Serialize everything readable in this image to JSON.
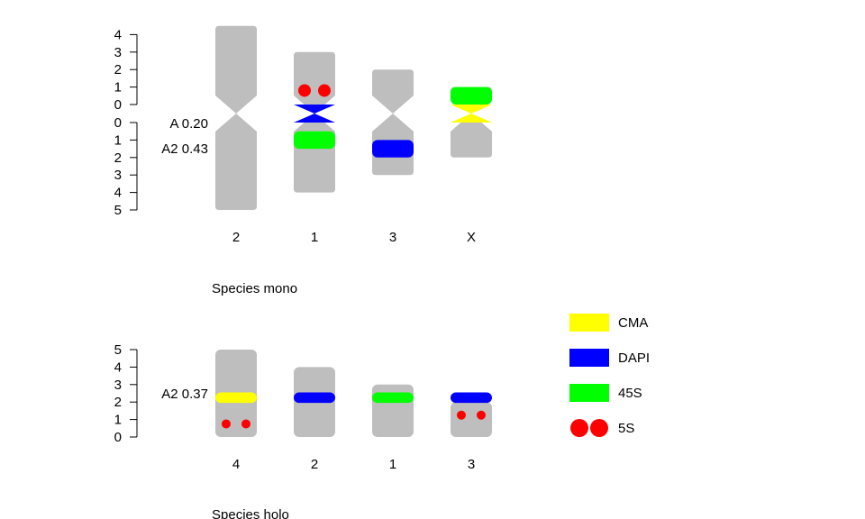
{
  "colors": {
    "chromosome": "#bebebe",
    "CMA": "#ffff00",
    "DAPI": "#0000ff",
    "45S": "#00ff00",
    "5S": "#ff0000"
  },
  "legend": [
    {
      "key": "CMA",
      "label": "CMA",
      "shape": "rect"
    },
    {
      "key": "DAPI",
      "label": "DAPI",
      "shape": "rect"
    },
    {
      "key": "45S",
      "label": "45S",
      "shape": "rect"
    },
    {
      "key": "5S",
      "label": "5S",
      "shape": "dots"
    }
  ],
  "panels": [
    {
      "title": "Species mono",
      "type": "monocentric",
      "short_arm_ticks": [
        "0",
        "1",
        "2",
        "3",
        "4"
      ],
      "long_arm_ticks": [
        "0",
        "1",
        "2",
        "3",
        "4",
        "5"
      ],
      "indices": [
        {
          "label": "A  0.20"
        },
        {
          "label": "A2 0.43"
        }
      ],
      "chromosomes": [
        {
          "name": "2",
          "short": 4.5,
          "long": 5.0,
          "marks": []
        },
        {
          "name": "1",
          "short": 3.0,
          "long": 4.0,
          "marks": [
            {
              "kind": "5S",
              "arm": "short",
              "pos": 0.8
            },
            {
              "kind": "DAPI",
              "arm": "cen"
            },
            {
              "kind": "45S",
              "arm": "long",
              "from": 0.5,
              "to": 1.5
            }
          ]
        },
        {
          "name": "3",
          "short": 2.0,
          "long": 3.0,
          "marks": [
            {
              "kind": "DAPI",
              "arm": "long",
              "from": 1.0,
              "to": 2.0
            }
          ]
        },
        {
          "name": "X",
          "short": 1.0,
          "long": 2.0,
          "marks": [
            {
              "kind": "45S",
              "arm": "short",
              "from": 0.0,
              "to": 1.0
            },
            {
              "kind": "CMA",
              "arm": "cen"
            }
          ]
        }
      ]
    },
    {
      "title": "Species holo",
      "type": "holocentric",
      "ticks": [
        "0",
        "1",
        "2",
        "3",
        "4",
        "5"
      ],
      "indices": [
        {
          "label": "A2 0.37"
        }
      ],
      "chromosomes": [
        {
          "name": "4",
          "length": 5.0,
          "marks": [
            {
              "kind": "CMA",
              "from": 1.95,
              "to": 2.55
            },
            {
              "kind": "5S",
              "pos": 0.75
            }
          ]
        },
        {
          "name": "2",
          "length": 4.0,
          "marks": [
            {
              "kind": "DAPI",
              "from": 1.95,
              "to": 2.55
            }
          ]
        },
        {
          "name": "1",
          "length": 3.0,
          "marks": [
            {
              "kind": "45S",
              "from": 1.95,
              "to": 2.55
            }
          ]
        },
        {
          "name": "3",
          "length": 2.0,
          "marks": [
            {
              "kind": "DAPI",
              "from": 1.95,
              "to": 2.55
            },
            {
              "kind": "5S",
              "pos": 1.25
            }
          ]
        }
      ]
    }
  ]
}
